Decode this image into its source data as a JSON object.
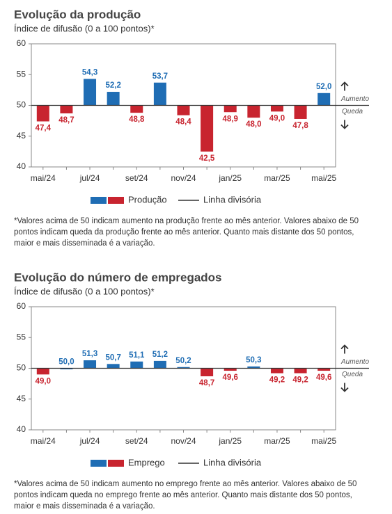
{
  "chart_data": [
    {
      "type": "bar",
      "title": "Evolução da produção",
      "subtitle": "Índice de difusão (0 a 100 pontos)*",
      "categories": [
        "mai/24",
        null,
        "jul/24",
        null,
        "set/24",
        null,
        "nov/24",
        null,
        "jan/25",
        null,
        "mar/25",
        null,
        "mai/25"
      ],
      "series": [
        {
          "name": "Produção",
          "values": [
            47.4,
            48.7,
            54.3,
            52.2,
            48.8,
            53.7,
            48.4,
            42.5,
            48.9,
            48.0,
            49.0,
            47.8,
            52.0
          ],
          "value_labels": [
            "47,4",
            "48,7",
            "54,3",
            "52,2",
            "48,8",
            "53,7",
            "48,4",
            "42,5",
            "48,9",
            "48,0",
            "49,0",
            "47,8",
            "52,0"
          ]
        }
      ],
      "color_above": "#1f6db4",
      "color_below": "#c8242f",
      "baseline": 50,
      "baseline_label": "Linha divisória",
      "above_label": "Aumento",
      "below_label": "Queda",
      "ylim": [
        40,
        60
      ],
      "yticks": [
        40,
        45,
        50,
        55,
        60
      ],
      "footnote": "*Valores acima de 50 indicam aumento na produção frente ao mês anterior. Valores abaixo de 50 pontos indicam queda da produção frente ao mês anterior. Quanto mais distante dos 50 pontos, maior e mais disseminada é a variação."
    },
    {
      "type": "bar",
      "title": "Evolução do número de empregados",
      "subtitle": "Índice de difusão (0 a 100 pontos)*",
      "categories": [
        "mai/24",
        null,
        "jul/24",
        null,
        "set/24",
        null,
        "nov/24",
        null,
        "jan/25",
        null,
        "mar/25",
        null,
        "mai/25"
      ],
      "series": [
        {
          "name": "Emprego",
          "values": [
            49.0,
            50.0,
            51.3,
            50.7,
            51.1,
            51.2,
            50.2,
            48.7,
            49.6,
            50.3,
            49.2,
            49.2,
            49.6
          ],
          "value_labels": [
            "49,0",
            "50,0",
            "51,3",
            "50,7",
            "51,1",
            "51,2",
            "50,2",
            "48,7",
            "49,6",
            "50,3",
            "49,2",
            "49,2",
            "49,6"
          ]
        }
      ],
      "color_above": "#1f6db4",
      "color_below": "#c8242f",
      "baseline": 50,
      "baseline_label": "Linha divisória",
      "above_label": "Aumento",
      "below_label": "Queda",
      "ylim": [
        40,
        60
      ],
      "yticks": [
        40,
        45,
        50,
        55,
        60
      ],
      "footnote": "*Valores acima de 50 indicam aumento no emprego frente ao mês anterior. Valores abaixo de 50 pontos indicam queda no emprego frente ao mês anterior. Quanto mais distante dos 50 pontos, maior e mais disseminada é a variação."
    }
  ]
}
